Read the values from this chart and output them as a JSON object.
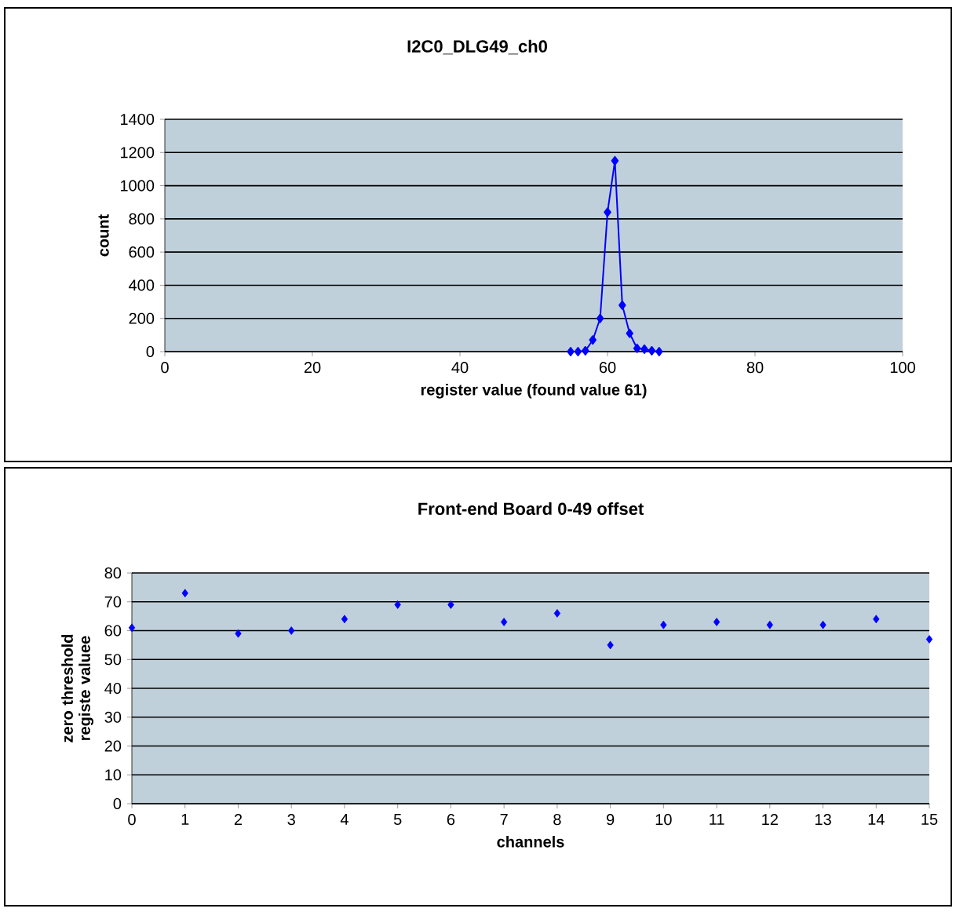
{
  "chart_data": [
    {
      "type": "line",
      "title": "I2C0_DLG49_ch0",
      "xlabel": "register value (found value 61)",
      "ylabel": "count",
      "x": [
        55,
        56,
        57,
        58,
        59,
        60,
        61,
        62,
        63,
        64,
        65,
        66,
        67
      ],
      "series": [
        {
          "color": "#0000ff",
          "values": [
            0,
            0,
            5,
            70,
            200,
            840,
            1150,
            280,
            110,
            20,
            15,
            5,
            0
          ]
        }
      ],
      "xlim": [
        0,
        100
      ],
      "xticks": [
        0,
        20,
        40,
        60,
        80,
        100
      ],
      "ylim": [
        0,
        1400
      ],
      "yticks": [
        0,
        200,
        400,
        600,
        800,
        1000,
        1200,
        1400
      ],
      "grid": "y",
      "marker": "diamond",
      "line_style": "solid"
    },
    {
      "type": "scatter",
      "title": "Front-end Board 0-49 offset",
      "xlabel": "channels",
      "ylabel": "zero threshold registe valuee",
      "x": [
        0,
        1,
        2,
        3,
        4,
        5,
        6,
        7,
        8,
        9,
        10,
        11,
        12,
        13,
        14,
        15
      ],
      "series": [
        {
          "color": "#0000ff",
          "values": [
            61,
            73,
            59,
            60,
            64,
            69,
            69,
            63,
            66,
            55,
            62,
            63,
            62,
            62,
            64,
            57
          ]
        }
      ],
      "xlim": [
        0,
        15
      ],
      "xticks": [
        0,
        1,
        2,
        3,
        4,
        5,
        6,
        7,
        8,
        9,
        10,
        11,
        12,
        13,
        14,
        15
      ],
      "ylim": [
        0,
        80
      ],
      "yticks": [
        0,
        10,
        20,
        30,
        40,
        50,
        60,
        70,
        80
      ],
      "grid": "y",
      "marker": "diamond"
    }
  ]
}
